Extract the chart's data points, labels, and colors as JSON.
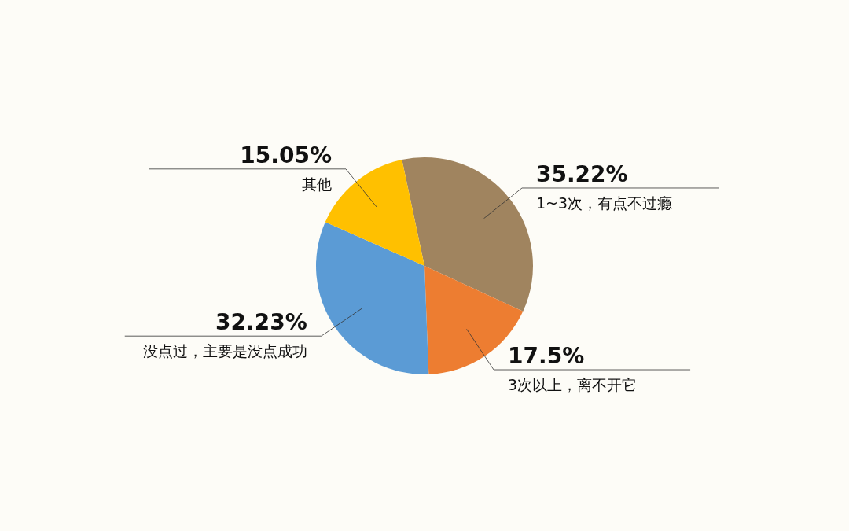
{
  "chart_data": {
    "type": "pie",
    "categories": [
      "1~3次，有点不过瘾",
      "3次以上，离不开它",
      "没点过，主要是没点成功",
      "其他"
    ],
    "values": [
      35.22,
      17.5,
      32.23,
      15.05
    ],
    "colors": [
      "#a0845f",
      "#ed7d31",
      "#5b9bd5",
      "#ffc000"
    ],
    "value_labels": [
      "35.22%",
      "17.5%",
      "32.23%",
      "15.05%"
    ]
  }
}
